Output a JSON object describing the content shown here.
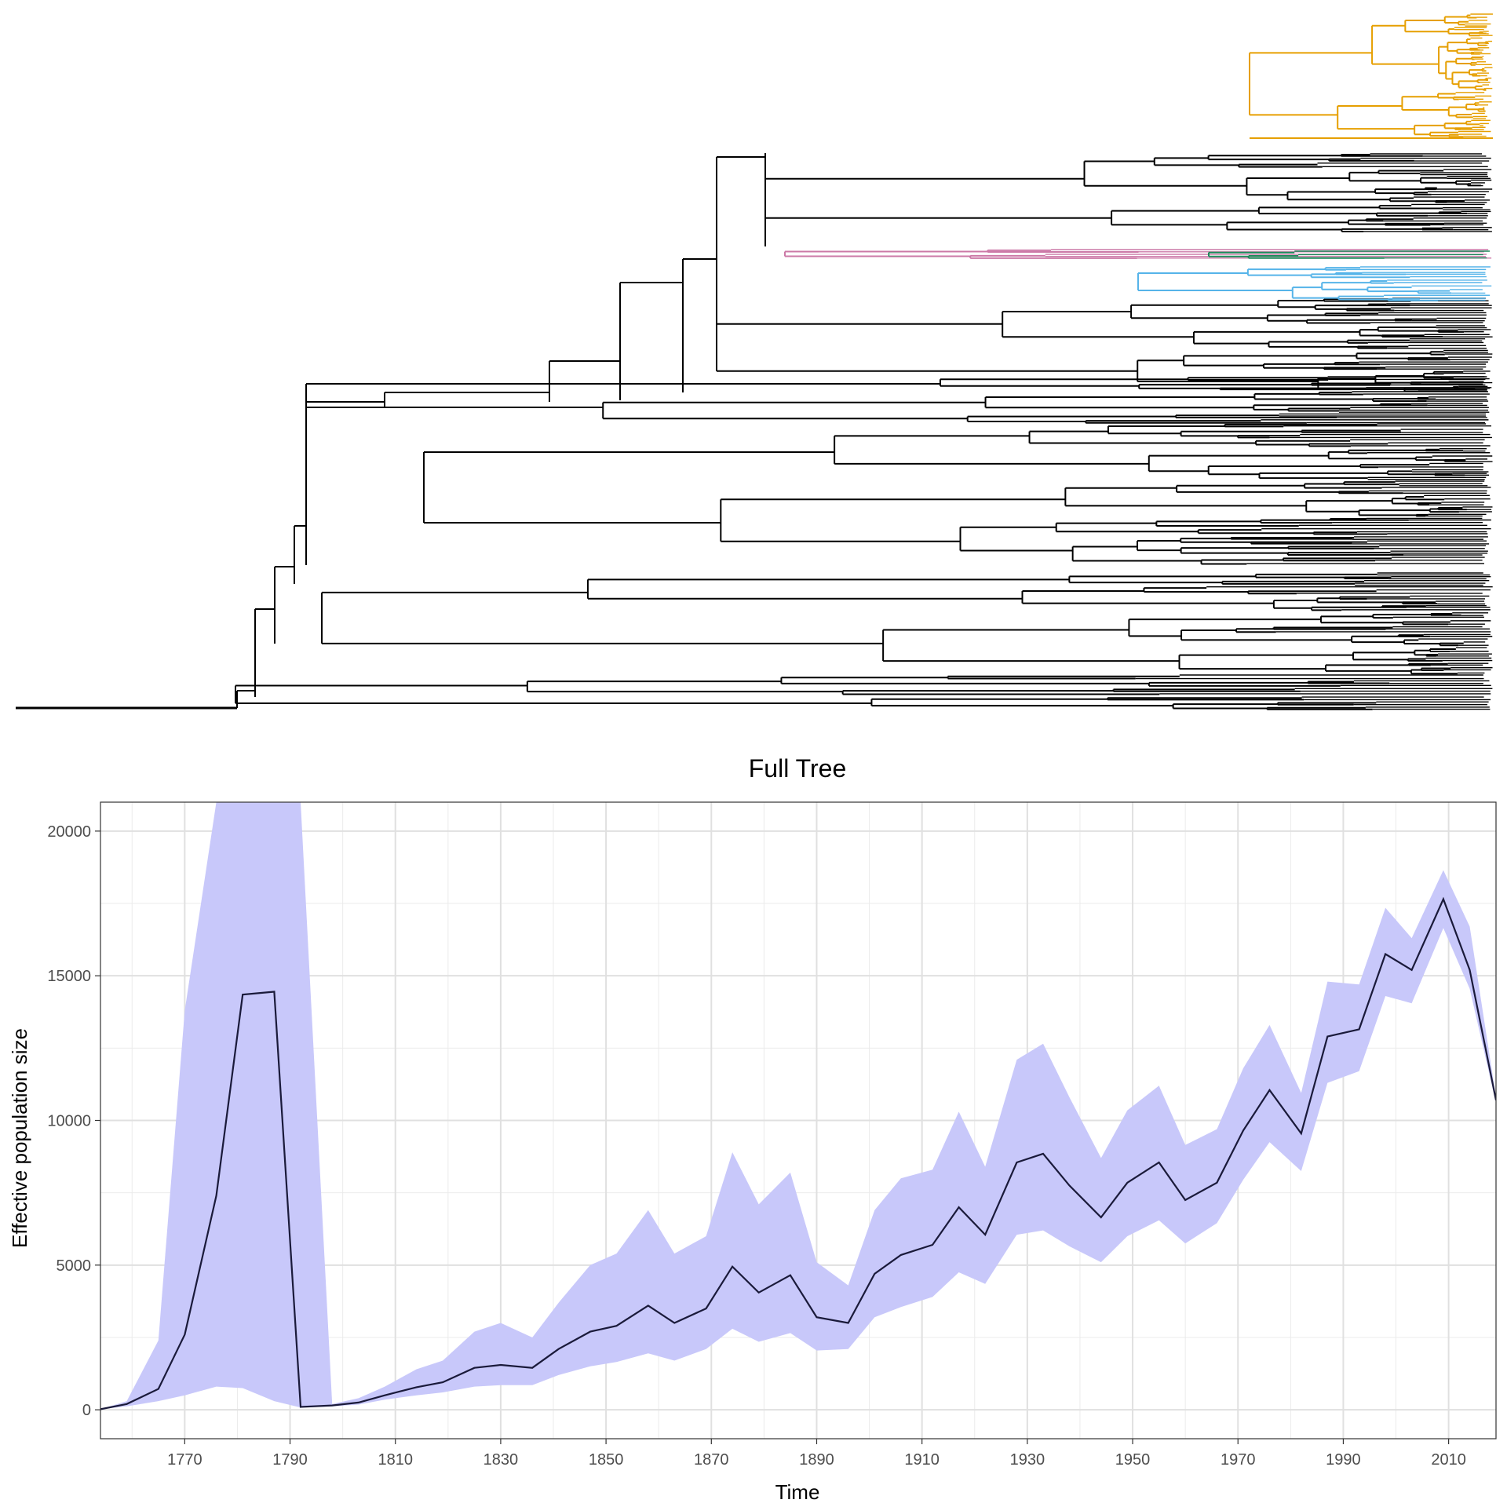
{
  "chart_data": [
    {
      "type": "tree",
      "clade_colors": {
        "orange": "#E69F00",
        "pink": "#CC79A7",
        "green": "#1B8A5A",
        "blue": "#56B4E9",
        "default": "#000000"
      }
    },
    {
      "type": "area",
      "title": "Full Tree",
      "xlabel": "Time",
      "ylabel": "Effective population size",
      "xlim": [
        1754,
        2019
      ],
      "ylim": [
        -1000,
        21000
      ],
      "x_ticks": [
        1770,
        1790,
        1810,
        1830,
        1850,
        1870,
        1890,
        1910,
        1930,
        1950,
        1970,
        1990,
        2010
      ],
      "y_ticks": [
        0,
        5000,
        10000,
        15000,
        20000
      ],
      "grid": true,
      "ribbon_color": "#C8C8FA",
      "line_color": "#1A1A3A",
      "series": [
        {
          "x": [
            1754,
            1759,
            1765,
            1770,
            1776,
            1781,
            1787,
            1792,
            1798,
            1803,
            1808,
            1814,
            1819,
            1825,
            1830,
            1836,
            1841,
            1847,
            1852,
            1858,
            1863,
            1869,
            1874,
            1879,
            1885,
            1890,
            1896,
            1901,
            1906,
            1912,
            1917,
            1922,
            1928,
            1933,
            1938,
            1944,
            1949,
            1955,
            1960,
            1966,
            1971,
            1976,
            1982,
            1987,
            1993,
            1998,
            2003,
            2009,
            2014,
            2019
          ],
          "y": [
            20,
            200,
            720,
            2600,
            7400,
            14350,
            14450,
            100,
            150,
            250,
            500,
            780,
            950,
            1450,
            1550,
            1450,
            2100,
            2700,
            2900,
            3600,
            3000,
            3500,
            4950,
            4050,
            4650,
            3200,
            3000,
            4700,
            5350,
            5700,
            7000,
            6050,
            8550,
            8850,
            7750,
            6650,
            7850,
            8550,
            7250,
            7850,
            9650,
            11050,
            9550,
            12900,
            13150,
            15750,
            15200,
            17650,
            15200,
            10700
          ],
          "lower": [
            20,
            120,
            300,
            500,
            800,
            750,
            300,
            80,
            120,
            180,
            350,
            500,
            600,
            800,
            850,
            850,
            1200,
            1500,
            1650,
            1950,
            1700,
            2100,
            2800,
            2350,
            2650,
            2050,
            2100,
            3200,
            3550,
            3900,
            4750,
            4350,
            6050,
            6200,
            5650,
            5100,
            6000,
            6550,
            5750,
            6450,
            7950,
            9250,
            8250,
            11300,
            11700,
            14300,
            14050,
            16650,
            14550,
            10600
          ],
          "upper": [
            20,
            300,
            2400,
            13800,
            21000,
            21000,
            21000,
            21000,
            200,
            400,
            800,
            1400,
            1700,
            2700,
            3000,
            2500,
            3700,
            5000,
            5400,
            6900,
            5400,
            6000,
            8900,
            7100,
            8200,
            5100,
            4300,
            6900,
            8000,
            8300,
            10300,
            8400,
            12100,
            12650,
            10800,
            8700,
            10350,
            11200,
            9150,
            9700,
            11800,
            13300,
            10950,
            14800,
            14700,
            17350,
            16300,
            18650,
            16700,
            10800
          ]
        }
      ]
    }
  ]
}
